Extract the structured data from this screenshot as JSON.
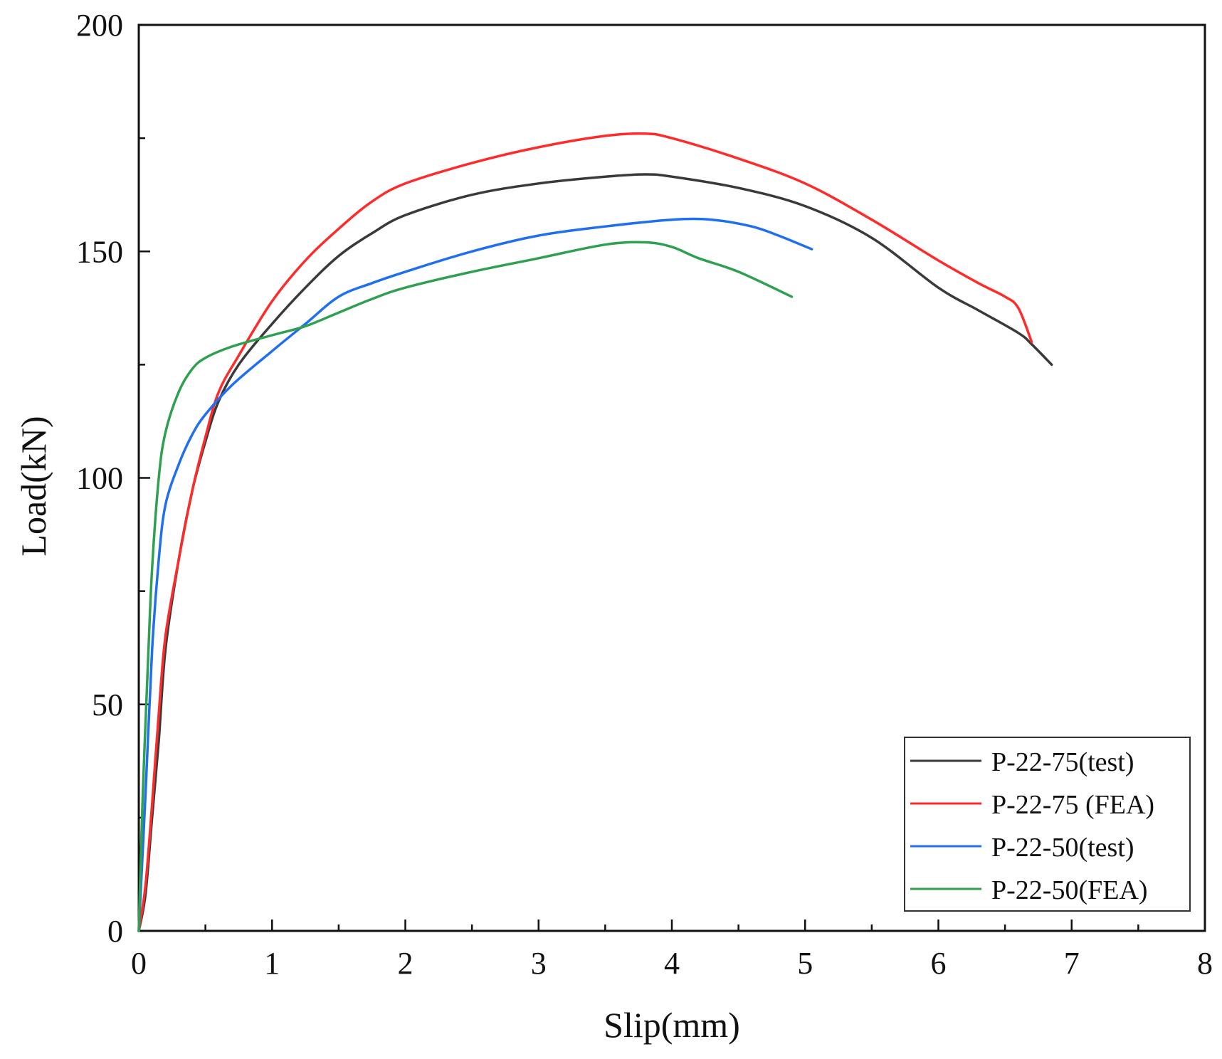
{
  "chart_data": {
    "type": "line",
    "title": "",
    "xlabel": "Slip(mm)",
    "ylabel": "Load(kN)",
    "xlim": [
      0,
      8
    ],
    "ylim": [
      0,
      200
    ],
    "x_ticks": [
      0,
      1,
      2,
      3,
      4,
      5,
      6,
      7,
      8
    ],
    "y_ticks": [
      0,
      50,
      100,
      150,
      200
    ],
    "grid": false,
    "legend_position": "bottom-right",
    "series": [
      {
        "name": "P-22-75(test)",
        "color": "#3a3a3a",
        "points": [
          [
            0,
            0
          ],
          [
            0.05,
            8
          ],
          [
            0.1,
            25
          ],
          [
            0.15,
            42
          ],
          [
            0.2,
            62
          ],
          [
            0.3,
            82
          ],
          [
            0.4,
            97
          ],
          [
            0.5,
            108
          ],
          [
            0.6,
            117
          ],
          [
            0.75,
            125
          ],
          [
            1.0,
            134
          ],
          [
            1.25,
            142
          ],
          [
            1.5,
            149
          ],
          [
            1.75,
            154
          ],
          [
            2.0,
            158
          ],
          [
            2.5,
            162.5
          ],
          [
            3.0,
            165
          ],
          [
            3.5,
            166.5
          ],
          [
            3.8,
            167
          ],
          [
            4.0,
            166.5
          ],
          [
            4.5,
            164
          ],
          [
            5.0,
            160
          ],
          [
            5.5,
            153
          ],
          [
            6.0,
            142
          ],
          [
            6.3,
            137
          ],
          [
            6.6,
            132
          ],
          [
            6.7,
            129.5
          ],
          [
            6.85,
            125
          ]
        ]
      },
      {
        "name": "P-22-75 (FEA)",
        "color": "#ff2a2a",
        "points": [
          [
            0,
            0
          ],
          [
            0.05,
            10
          ],
          [
            0.1,
            28
          ],
          [
            0.15,
            48
          ],
          [
            0.2,
            65
          ],
          [
            0.3,
            82
          ],
          [
            0.4,
            97
          ],
          [
            0.5,
            109
          ],
          [
            0.6,
            119
          ],
          [
            0.75,
            127
          ],
          [
            1.0,
            139
          ],
          [
            1.25,
            148
          ],
          [
            1.5,
            155
          ],
          [
            1.75,
            161
          ],
          [
            2.0,
            165
          ],
          [
            2.5,
            169.5
          ],
          [
            3.0,
            173
          ],
          [
            3.5,
            175.5
          ],
          [
            3.8,
            176
          ],
          [
            4.0,
            175
          ],
          [
            4.5,
            170.5
          ],
          [
            5.0,
            165
          ],
          [
            5.5,
            157
          ],
          [
            6.0,
            148
          ],
          [
            6.3,
            143
          ],
          [
            6.5,
            140
          ],
          [
            6.6,
            137.5
          ],
          [
            6.7,
            130
          ]
        ]
      },
      {
        "name": "P-22-50(test)",
        "color": "#1f6ff0",
        "points": [
          [
            0,
            0
          ],
          [
            0.05,
            30
          ],
          [
            0.1,
            62
          ],
          [
            0.15,
            82
          ],
          [
            0.2,
            94
          ],
          [
            0.3,
            103
          ],
          [
            0.4,
            109.5
          ],
          [
            0.5,
            114
          ],
          [
            0.7,
            120.5
          ],
          [
            1.0,
            128
          ],
          [
            1.25,
            134
          ],
          [
            1.5,
            140
          ],
          [
            1.75,
            143
          ],
          [
            2.0,
            145.5
          ],
          [
            2.5,
            150
          ],
          [
            3.0,
            153.5
          ],
          [
            3.5,
            155.5
          ],
          [
            4.0,
            157
          ],
          [
            4.3,
            157
          ],
          [
            4.6,
            155.5
          ],
          [
            4.8,
            153.5
          ],
          [
            5.05,
            150.5
          ]
        ]
      },
      {
        "name": "P-22-50(FEA)",
        "color": "#2ea050",
        "points": [
          [
            0,
            0
          ],
          [
            0.03,
            30
          ],
          [
            0.07,
            60
          ],
          [
            0.1,
            80
          ],
          [
            0.15,
            100
          ],
          [
            0.2,
            110
          ],
          [
            0.3,
            119
          ],
          [
            0.4,
            124
          ],
          [
            0.5,
            126.5
          ],
          [
            0.7,
            129
          ],
          [
            1.0,
            131.5
          ],
          [
            1.25,
            133.5
          ],
          [
            1.5,
            136.5
          ],
          [
            1.75,
            139.5
          ],
          [
            2.0,
            142
          ],
          [
            2.5,
            145.5
          ],
          [
            3.0,
            148.5
          ],
          [
            3.5,
            151.5
          ],
          [
            3.8,
            152
          ],
          [
            4.0,
            151
          ],
          [
            4.2,
            148.5
          ],
          [
            4.5,
            145.5
          ],
          [
            4.9,
            140
          ]
        ]
      }
    ]
  }
}
